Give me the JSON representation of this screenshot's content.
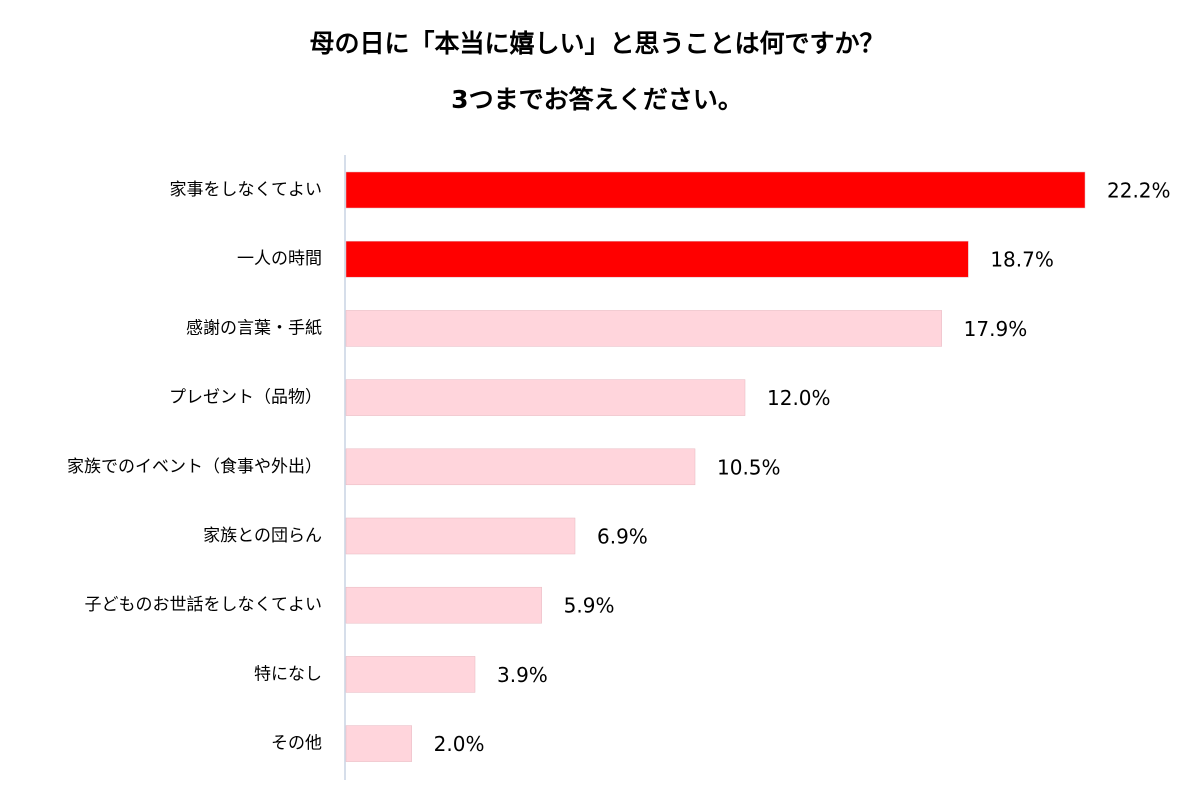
{
  "chart_data": {
    "type": "hbar",
    "title": "母の日に「本当に嬉しい」と思うことは何ですか？",
    "subtitle": "3つまでお答えください。",
    "categories": [
      "家事をしなくてよい",
      "一人の時間",
      "感謝の言葉・手紙",
      "プレゼント（品物）",
      "家族でのイベント（食事や外出）",
      "家族との団らん",
      "子どものお世話をしなくてよい",
      "特になし",
      "その他"
    ],
    "values": [
      22.2,
      18.7,
      17.9,
      12.0,
      10.5,
      6.9,
      5.9,
      3.9,
      2.0
    ],
    "value_labels": [
      "22.2%",
      "18.7%",
      "17.9%",
      "12.0%",
      "10.5%",
      "6.9%",
      "5.9%",
      "3.9%",
      "2.0%"
    ],
    "colors": [
      "#ff0000",
      "#ff0000",
      "#ffd5dc",
      "#ffd5dc",
      "#ffd5dc",
      "#ffd5dc",
      "#ffd5dc",
      "#ffd5dc",
      "#ffd5dc"
    ]
  }
}
